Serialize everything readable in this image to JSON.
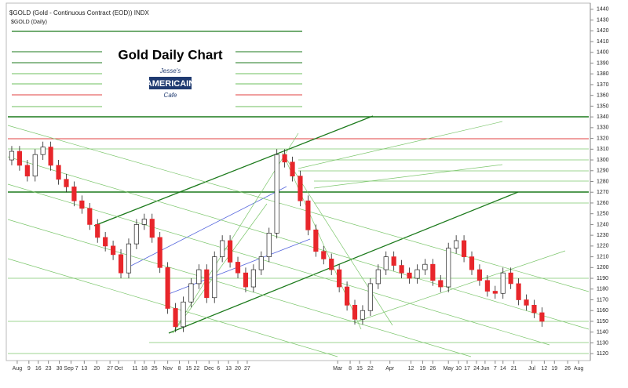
{
  "chart_data": {
    "type": "candlestick",
    "title": "$GOLD (Gold - Continuous Contract (EOD)) INDX",
    "subtitle": "$GOLD (Daily)",
    "annotations": [
      "Gold Daily Chart",
      "Jesse's",
      "AMERICAIN",
      "Cafe"
    ],
    "open": [
      1300,
      1308,
      1295,
      1285,
      1305,
      1312,
      1295,
      1282,
      1275,
      1262,
      1255,
      1240,
      1228,
      1220,
      1212,
      1195,
      1222,
      1240,
      1245,
      1228,
      1200,
      1162,
      1145,
      1168,
      1185,
      1198,
      1172,
      1210,
      1225,
      1205,
      1195,
      1182,
      1198,
      1210,
      1232,
      1305,
      1298,
      1285,
      1262,
      1235,
      1215,
      1208,
      1198,
      1182,
      1165,
      1152,
      1160,
      1185,
      1198,
      1210,
      1202,
      1195,
      1190,
      1198,
      1203,
      1188,
      1182,
      1218,
      1225,
      1210,
      1198,
      1188,
      1178,
      1176,
      1195,
      1185,
      1170,
      1165,
      1158
    ],
    "high": [
      1313,
      1313,
      1300,
      1310,
      1317,
      1317,
      1300,
      1287,
      1280,
      1267,
      1260,
      1245,
      1233,
      1225,
      1217,
      1227,
      1245,
      1250,
      1250,
      1233,
      1205,
      1167,
      1173,
      1190,
      1203,
      1203,
      1215,
      1230,
      1230,
      1210,
      1200,
      1203,
      1215,
      1237,
      1310,
      1310,
      1303,
      1290,
      1267,
      1240,
      1220,
      1213,
      1203,
      1187,
      1170,
      1165,
      1190,
      1203,
      1215,
      1215,
      1207,
      1200,
      1203,
      1208,
      1208,
      1193,
      1223,
      1230,
      1230,
      1215,
      1203,
      1193,
      1183,
      1200,
      1200,
      1190,
      1175,
      1170,
      1163
    ],
    "low": [
      1295,
      1290,
      1280,
      1280,
      1300,
      1290,
      1277,
      1270,
      1257,
      1250,
      1235,
      1223,
      1215,
      1207,
      1190,
      1190,
      1217,
      1235,
      1223,
      1195,
      1157,
      1140,
      1140,
      1163,
      1180,
      1167,
      1167,
      1205,
      1200,
      1190,
      1177,
      1177,
      1193,
      1205,
      1227,
      1293,
      1280,
      1257,
      1230,
      1210,
      1203,
      1193,
      1177,
      1160,
      1147,
      1147,
      1155,
      1180,
      1193,
      1197,
      1190,
      1185,
      1185,
      1193,
      1183,
      1177,
      1177,
      1213,
      1205,
      1193,
      1183,
      1173,
      1171,
      1171,
      1180,
      1165,
      1160,
      1153,
      1145
    ],
    "close": [
      1308,
      1295,
      1285,
      1305,
      1312,
      1295,
      1282,
      1275,
      1262,
      1255,
      1240,
      1228,
      1220,
      1212,
      1195,
      1222,
      1240,
      1245,
      1228,
      1200,
      1162,
      1145,
      1168,
      1185,
      1198,
      1172,
      1210,
      1225,
      1205,
      1195,
      1182,
      1198,
      1210,
      1232,
      1305,
      1298,
      1285,
      1262,
      1235,
      1215,
      1208,
      1198,
      1182,
      1165,
      1152,
      1160,
      1185,
      1198,
      1210,
      1202,
      1195,
      1190,
      1198,
      1203,
      1188,
      1182,
      1218,
      1225,
      1210,
      1198,
      1188,
      1178,
      1176,
      1195,
      1185,
      1170,
      1165,
      1158,
      1150
    ],
    "up_color": "#ffffff",
    "down_color": "#e8262b",
    "xlim": [
      -0.5,
      74
    ],
    "xticks": [
      {
        "value": 0.7,
        "label": "Aug"
      },
      {
        "value": 2.2,
        "label": "9"
      },
      {
        "value": 3.4,
        "label": "16"
      },
      {
        "value": 4.7,
        "label": "23"
      },
      {
        "value": 6.1,
        "label": "30"
      },
      {
        "value": 7.6,
        "label": "Sep 7"
      },
      {
        "value": 9.3,
        "label": "13"
      },
      {
        "value": 10.9,
        "label": "20"
      },
      {
        "value": 12.6,
        "label": "27"
      },
      {
        "value": 13.7,
        "label": "Oct"
      },
      {
        "value": 15.8,
        "label": "11"
      },
      {
        "value": 17,
        "label": "18"
      },
      {
        "value": 18.3,
        "label": "25"
      },
      {
        "value": 20.0,
        "label": "Nov"
      },
      {
        "value": 21.5,
        "label": "8"
      },
      {
        "value": 22.7,
        "label": "15"
      },
      {
        "value": 23.7,
        "label": "22"
      },
      {
        "value": 25.3,
        "label": "Dec"
      },
      {
        "value": 26.5,
        "label": "6"
      },
      {
        "value": 27.8,
        "label": "13"
      },
      {
        "value": 29,
        "label": "20"
      },
      {
        "value": 30.2,
        "label": "27"
      },
      {
        "value": 41.8,
        "label": "Mar"
      },
      {
        "value": 43.4,
        "label": "8"
      },
      {
        "value": 44.6,
        "label": "15"
      },
      {
        "value": 46,
        "label": "22"
      },
      {
        "value": 48.5,
        "label": "Apr"
      },
      {
        "value": 51.2,
        "label": "12"
      },
      {
        "value": 52.7,
        "label": "19"
      },
      {
        "value": 54,
        "label": "26"
      },
      {
        "value": 56,
        "label": "May"
      },
      {
        "value": 57.3,
        "label": "10"
      },
      {
        "value": 58.4,
        "label": "17"
      },
      {
        "value": 59.6,
        "label": "24"
      },
      {
        "value": 60.7,
        "label": "Jun"
      },
      {
        "value": 62,
        "label": "7"
      },
      {
        "value": 63,
        "label": "14"
      },
      {
        "value": 64.4,
        "label": "21"
      },
      {
        "value": 66.7,
        "label": "Jul"
      },
      {
        "value": 68.3,
        "label": "12"
      },
      {
        "value": 69.6,
        "label": "19"
      },
      {
        "value": 71.3,
        "label": "26"
      },
      {
        "value": 72.7,
        "label": "Aug"
      }
    ],
    "ylim": [
      1115,
      1445
    ],
    "yticks": [
      1120,
      1130,
      1140,
      1150,
      1160,
      1170,
      1180,
      1190,
      1200,
      1210,
      1220,
      1230,
      1240,
      1250,
      1260,
      1270,
      1280,
      1290,
      1300,
      1310,
      1320,
      1330,
      1340,
      1350,
      1360,
      1370,
      1380,
      1390,
      1400,
      1410,
      1420,
      1430,
      1440
    ]
  }
}
